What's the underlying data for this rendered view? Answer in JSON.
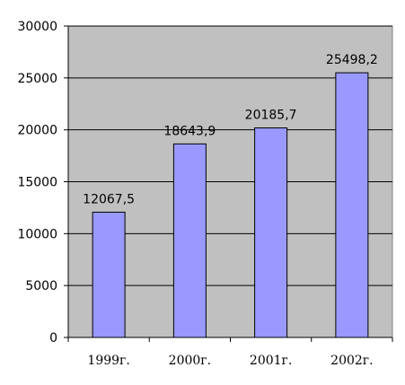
{
  "chart_data": {
    "type": "bar",
    "categories": [
      "1999г.",
      "2000г.",
      "2001г.",
      "2002г."
    ],
    "values": [
      12067.5,
      18643.9,
      20185.7,
      25498.2
    ],
    "data_labels": [
      "12067,5",
      "18643,9",
      "20185,7",
      "25498,2"
    ],
    "y_ticks": [
      "0",
      "5000",
      "10000",
      "15000",
      "20000",
      "25000",
      "30000"
    ],
    "ylim": [
      0,
      30000
    ],
    "grid": true,
    "colors": {
      "plot_background": "#c0c0c0",
      "bar_fill": "#9999ff",
      "bar_stroke": "#000000",
      "gridline": "#000000"
    }
  }
}
